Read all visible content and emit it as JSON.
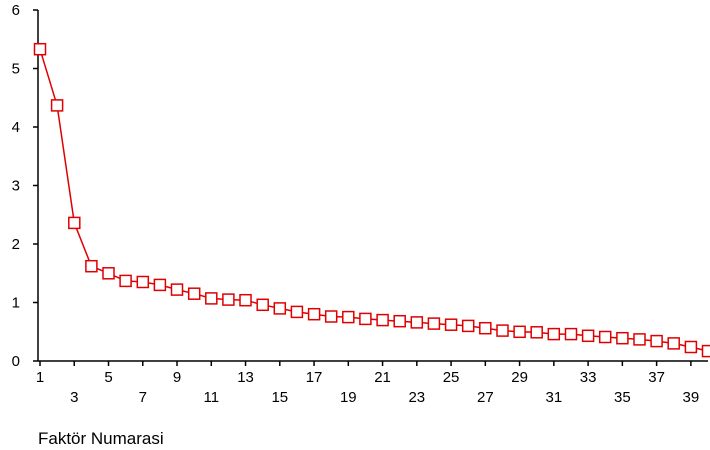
{
  "chart_data": {
    "type": "line",
    "xlabel": "Faktör Numarasi",
    "ylabel": "",
    "xlim": [
      1,
      40
    ],
    "ylim": [
      0,
      6
    ],
    "yticks": [
      "0",
      "1",
      "2",
      "3",
      "4",
      "5",
      "6"
    ],
    "xticks_row1": [
      "1",
      "5",
      "9",
      "13",
      "17",
      "21",
      "25",
      "29",
      "33",
      "37"
    ],
    "xticks_row2": [
      "3",
      "7",
      "11",
      "15",
      "19",
      "23",
      "27",
      "31",
      "35",
      "39"
    ],
    "grid": false,
    "series": [
      {
        "color": "#e00000",
        "marker": "square",
        "x": [
          1,
          2,
          3,
          4,
          5,
          6,
          7,
          8,
          9,
          10,
          11,
          12,
          13,
          14,
          15,
          16,
          17,
          18,
          19,
          20,
          21,
          22,
          23,
          24,
          25,
          26,
          27,
          28,
          29,
          30,
          31,
          32,
          33,
          34,
          35,
          36,
          37,
          38,
          39,
          40
        ],
        "values": [
          5.33,
          4.37,
          2.36,
          1.62,
          1.5,
          1.37,
          1.35,
          1.3,
          1.22,
          1.15,
          1.07,
          1.05,
          1.04,
          0.96,
          0.9,
          0.84,
          0.8,
          0.76,
          0.75,
          0.72,
          0.7,
          0.68,
          0.66,
          0.64,
          0.62,
          0.6,
          0.56,
          0.52,
          0.5,
          0.49,
          0.46,
          0.46,
          0.43,
          0.41,
          0.39,
          0.37,
          0.34,
          0.3,
          0.24,
          0.17
        ]
      }
    ]
  }
}
